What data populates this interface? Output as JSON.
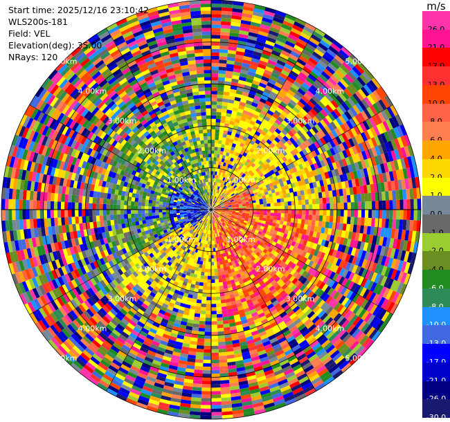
{
  "header": {
    "start_time": "Start time: 2025/12/16 23:10:42",
    "instrument": "WLS200s-181",
    "field": "Field: VEL",
    "elevation": "Elevation(deg): 35.00",
    "nrays": "NRays: 120"
  },
  "colorbar": {
    "unit": "m/s",
    "bins": [
      {
        "label": "26.0",
        "color": "#ff33aa"
      },
      {
        "label": "21.0",
        "color": "#ff1493"
      },
      {
        "label": "17.0",
        "color": "#ff0000"
      },
      {
        "label": "13.0",
        "color": "#ff3030"
      },
      {
        "label": "10.0",
        "color": "#ff4500"
      },
      {
        "label": "8.0",
        "color": "#ff6347"
      },
      {
        "label": "6.0",
        "color": "#ff7f50"
      },
      {
        "label": "4.0",
        "color": "#ffa500"
      },
      {
        "label": "2.0",
        "color": "#ffd700"
      },
      {
        "label": "1.0",
        "color": "#ffff00"
      },
      {
        "label": "0.0",
        "color": "#778899"
      },
      {
        "label": "-1.0",
        "color": "#696969"
      },
      {
        "label": "-2.0",
        "color": "#9acd32"
      },
      {
        "label": "-4.0",
        "color": "#6b8e23"
      },
      {
        "label": "-6.0",
        "color": "#228b22"
      },
      {
        "label": "-8.0",
        "color": "#2e8b57"
      },
      {
        "label": "-10.0",
        "color": "#1e90ff"
      },
      {
        "label": "-13.0",
        "color": "#4169e1"
      },
      {
        "label": "-17.0",
        "color": "#0000ff"
      },
      {
        "label": "-21.0",
        "color": "#0000cd"
      },
      {
        "label": "-26.0",
        "color": "#000080"
      },
      {
        "label": "-30.0",
        "color": "#191970"
      }
    ]
  },
  "range_rings": [
    {
      "km": 1,
      "label": "1.00km"
    },
    {
      "km": 2,
      "label": "2.00km"
    },
    {
      "km": 3,
      "label": "3.00km"
    },
    {
      "km": 4,
      "label": "4.00km"
    },
    {
      "km": 5,
      "label": "5.00km"
    }
  ],
  "radar": {
    "nrays": 120,
    "max_range_km": 5.0,
    "gates": 60,
    "quadrant_bias": {
      "north_west": "green",
      "north_east": "yellow",
      "south_east": "red-orange",
      "south_west": "yellow",
      "west_core": "blue",
      "east_core": "red"
    }
  }
}
